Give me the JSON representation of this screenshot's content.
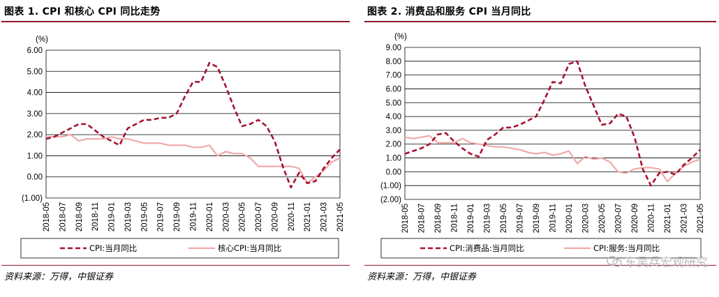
{
  "colors": {
    "accent": "#8b1a2b",
    "series_dark": "#a4122f",
    "series_light": "#f0a8a8",
    "grid": "#000000"
  },
  "source_text": "资料来源：万得，中银证券",
  "watermark": "东吴兵宏观研究",
  "charts": [
    {
      "title": "图表 1. CPI 和核心 CPI 同比走势",
      "unit_label": "(%)",
      "chart_data": {
        "type": "line",
        "title": "图表 1. CPI 和核心 CPI 同比走势",
        "ylabel": "(%)",
        "ylim": [
          -1,
          6
        ],
        "yticks": [
          6,
          5,
          4,
          3,
          2,
          1,
          0,
          -1
        ],
        "ytick_labels": [
          "6.00",
          "5.00",
          "4.00",
          "3.00",
          "2.00",
          "1.00",
          "0.00",
          "(1.00)"
        ],
        "xtick_labels": [
          "2018-05",
          "2018-07",
          "2018-09",
          "2018-11",
          "2019-01",
          "2019-03",
          "2019-05",
          "2019-07",
          "2019-09",
          "2019-11",
          "2020-01",
          "2020-03",
          "2020-05",
          "2020-07",
          "2020-09",
          "2020-11",
          "2021-01",
          "2021-03",
          "2021-05"
        ],
        "grid": "horizontal",
        "legend": "bottom",
        "x": [
          "2018-05",
          "2018-06",
          "2018-07",
          "2018-08",
          "2018-09",
          "2018-10",
          "2018-11",
          "2018-12",
          "2019-01",
          "2019-02",
          "2019-03",
          "2019-04",
          "2019-05",
          "2019-06",
          "2019-07",
          "2019-08",
          "2019-09",
          "2019-10",
          "2019-11",
          "2019-12",
          "2020-01",
          "2020-02",
          "2020-03",
          "2020-04",
          "2020-05",
          "2020-06",
          "2020-07",
          "2020-08",
          "2020-09",
          "2020-10",
          "2020-11",
          "2020-12",
          "2021-01",
          "2021-02",
          "2021-03",
          "2021-04",
          "2021-05"
        ],
        "series": [
          {
            "name": "CPI:当月同比",
            "style": "dashed",
            "values": [
              1.8,
              1.9,
              2.1,
              2.3,
              2.5,
              2.5,
              2.2,
              1.9,
              1.7,
              1.5,
              2.3,
              2.5,
              2.7,
              2.7,
              2.8,
              2.8,
              3.0,
              3.8,
              4.5,
              4.5,
              5.4,
              5.2,
              4.3,
              3.3,
              2.4,
              2.5,
              2.7,
              2.4,
              1.7,
              0.5,
              -0.5,
              0.2,
              -0.3,
              -0.2,
              0.4,
              0.9,
              1.3
            ]
          },
          {
            "name": "核心CPI:当月同比",
            "style": "solid",
            "values": [
              1.9,
              1.9,
              1.9,
              2.0,
              1.7,
              1.8,
              1.8,
              1.8,
              1.9,
              1.8,
              1.8,
              1.7,
              1.6,
              1.6,
              1.6,
              1.5,
              1.5,
              1.5,
              1.4,
              1.4,
              1.5,
              1.0,
              1.2,
              1.1,
              1.1,
              0.9,
              0.5,
              0.5,
              0.5,
              0.5,
              0.5,
              0.4,
              -0.3,
              0.0,
              0.3,
              0.7,
              0.9
            ]
          }
        ]
      }
    },
    {
      "title": "图表 2. 消费品和服务 CPI 当月同比",
      "unit_label": "(%)",
      "chart_data": {
        "type": "line",
        "title": "图表 2. 消费品和服务 CPI 当月同比",
        "ylabel": "(%)",
        "ylim": [
          -2,
          9
        ],
        "yticks": [
          9,
          8,
          7,
          6,
          5,
          4,
          3,
          2,
          1,
          0,
          -1,
          -2
        ],
        "ytick_labels": [
          "9.00",
          "8.00",
          "7.00",
          "6.00",
          "5.00",
          "4.00",
          "3.00",
          "2.00",
          "1.00",
          "0.00",
          "(1.00)",
          "(2.00)"
        ],
        "xtick_labels": [
          "2018-05",
          "2018-07",
          "2018-09",
          "2018-11",
          "2019-01",
          "2019-03",
          "2019-05",
          "2019-07",
          "2019-09",
          "2019-11",
          "2020-01",
          "2020-03",
          "2020-05",
          "2020-07",
          "2020-09",
          "2020-11",
          "2021-01",
          "2021-03",
          "2021-05"
        ],
        "grid": "horizontal",
        "legend": "bottom",
        "x": [
          "2018-05",
          "2018-06",
          "2018-07",
          "2018-08",
          "2018-09",
          "2018-10",
          "2018-11",
          "2018-12",
          "2019-01",
          "2019-02",
          "2019-03",
          "2019-04",
          "2019-05",
          "2019-06",
          "2019-07",
          "2019-08",
          "2019-09",
          "2019-10",
          "2019-11",
          "2019-12",
          "2020-01",
          "2020-02",
          "2020-03",
          "2020-04",
          "2020-05",
          "2020-06",
          "2020-07",
          "2020-08",
          "2020-09",
          "2020-10",
          "2020-11",
          "2020-12",
          "2021-01",
          "2021-02",
          "2021-03",
          "2021-04",
          "2021-05"
        ],
        "series": [
          {
            "name": "CPI:消费品:当月同比",
            "style": "dashed",
            "values": [
              1.3,
              1.5,
              1.7,
              2.0,
              2.7,
              2.8,
              2.2,
              1.7,
              1.3,
              1.1,
              2.3,
              2.7,
              3.2,
              3.2,
              3.4,
              3.7,
              4.0,
              5.2,
              6.5,
              6.4,
              7.8,
              8.0,
              6.2,
              4.8,
              3.4,
              3.5,
              4.2,
              4.0,
              2.5,
              0.2,
              -1.0,
              -0.1,
              0.0,
              -0.2,
              0.5,
              1.0,
              1.6
            ]
          },
          {
            "name": "CPI:服务:当月同比",
            "style": "solid",
            "values": [
              2.5,
              2.4,
              2.5,
              2.6,
              2.1,
              2.1,
              2.1,
              2.4,
              2.1,
              2.0,
              1.9,
              1.8,
              1.8,
              1.7,
              1.6,
              1.4,
              1.3,
              1.4,
              1.2,
              1.3,
              1.5,
              0.6,
              1.1,
              0.9,
              1.0,
              0.7,
              0.0,
              -0.1,
              0.2,
              0.3,
              0.3,
              0.2,
              -0.7,
              -0.1,
              0.4,
              0.7,
              0.9
            ]
          }
        ]
      }
    }
  ]
}
